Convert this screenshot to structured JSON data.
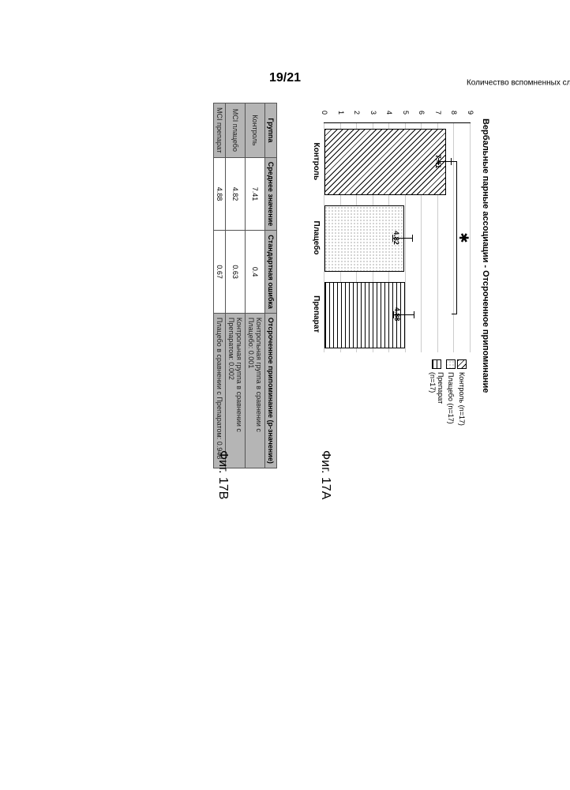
{
  "page_number": "19/21",
  "fig_a_label": "Фиг. 17A",
  "fig_b_label": "Фиг. 17B",
  "chart": {
    "type": "bar",
    "title": "Вербальные парные ассоциации - Отсроченное припоминание",
    "y_axis_label": "Количество вспомненных словесных пар",
    "ylim": [
      0,
      9
    ],
    "ytick_step": 1,
    "background_color": "#ffffff",
    "grid_color": "#cccccc",
    "categories": [
      "Контроль",
      "Плацебо",
      "Препарат"
    ],
    "values": [
      7.41,
      4.82,
      4.88
    ],
    "errors": [
      0.4,
      0.63,
      0.67
    ],
    "bar_value_labels": [
      "7.41",
      "4.82",
      "4.88"
    ],
    "bar_patterns": [
      "diag",
      "dots",
      "grid"
    ],
    "bar_colors": [
      "#ffffff",
      "#ffffff",
      "#ffffff"
    ],
    "bar_width_rel": 0.85,
    "legend": [
      {
        "label": "Контроль (n=17)",
        "pattern": "diag"
      },
      {
        "label": "Плацебо (n=17)",
        "pattern": "dots"
      },
      {
        "label": "Препарат (n=17)",
        "pattern": "grid"
      }
    ],
    "significance": {
      "from_index": 0,
      "to_index": 2,
      "symbol": "✱"
    }
  },
  "table": {
    "columns": [
      "Группа",
      "Среднее значение",
      "Стандартная ошибка",
      "Отсроченное припоминание (p-значение)"
    ],
    "rows": [
      {
        "group": "Контроль",
        "mean": "7.41",
        "se": "0.4",
        "pvalue": "Контрольная группа в сравнении с Плацебо: 0.001"
      },
      {
        "group": "MCI плацебо",
        "mean": "4.82",
        "se": "0.63",
        "pvalue": "Контрольная группа в сравнении с Препаратом: 0.002"
      },
      {
        "group": "MCI препарат",
        "mean": "4.88",
        "se": "0.67",
        "pvalue": "Плацебо в сравнении с Препаратом: 0.948"
      }
    ],
    "header_bg": "#b5b5b5",
    "shaded_bg": "#b5b5b5"
  }
}
